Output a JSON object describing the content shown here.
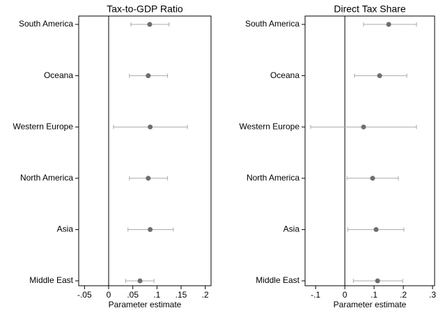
{
  "chart_data": [
    {
      "type": "coefplot",
      "title": "Tax-to-GDP Ratio",
      "xlabel": "Parameter estimate",
      "categories": [
        "South America",
        "Oceana",
        "Western Europe",
        "North America",
        "Asia",
        "Middle East"
      ],
      "values": [
        0.085,
        0.082,
        0.086,
        0.082,
        0.086,
        0.065
      ],
      "lower": [
        0.046,
        0.043,
        0.01,
        0.043,
        0.04,
        0.035
      ],
      "upper": [
        0.125,
        0.122,
        0.163,
        0.122,
        0.134,
        0.094
      ],
      "color": "#6e6e6e",
      "ci_color": "#a8a8a8",
      "xlim": [
        -0.062,
        0.212
      ],
      "xticks": [
        {
          "value": -0.05,
          "label": "-.05"
        },
        0,
        {
          "value": 0.05,
          "label": ".05"
        },
        {
          "value": 0.1,
          "label": ".1"
        },
        {
          "value": 0.15,
          "label": ".15"
        },
        {
          "value": 0.2,
          "label": ".2"
        }
      ],
      "refline": 0
    },
    {
      "type": "coefplot",
      "title": "Direct Tax Share",
      "xlabel": "Parameter estimate",
      "categories": [
        "South America",
        "Oceana",
        "Western Europe",
        "North America",
        "Asia",
        "Middle East"
      ],
      "values": [
        0.15,
        0.119,
        0.064,
        0.095,
        0.107,
        0.112
      ],
      "lower": [
        0.064,
        0.033,
        -0.117,
        0.007,
        0.01,
        0.029
      ],
      "upper": [
        0.245,
        0.212,
        0.245,
        0.183,
        0.202,
        0.198
      ],
      "color": "#6e6e6e",
      "ci_color": "#a8a8a8",
      "xlim": [
        -0.136,
        0.307
      ],
      "xticks": [
        {
          "value": -0.1,
          "label": "-.1"
        },
        0,
        {
          "value": 0.1,
          "label": ".1"
        },
        {
          "value": 0.2,
          "label": ".2"
        },
        {
          "value": 0.3,
          "label": ".3"
        }
      ],
      "refline": 0
    }
  ]
}
